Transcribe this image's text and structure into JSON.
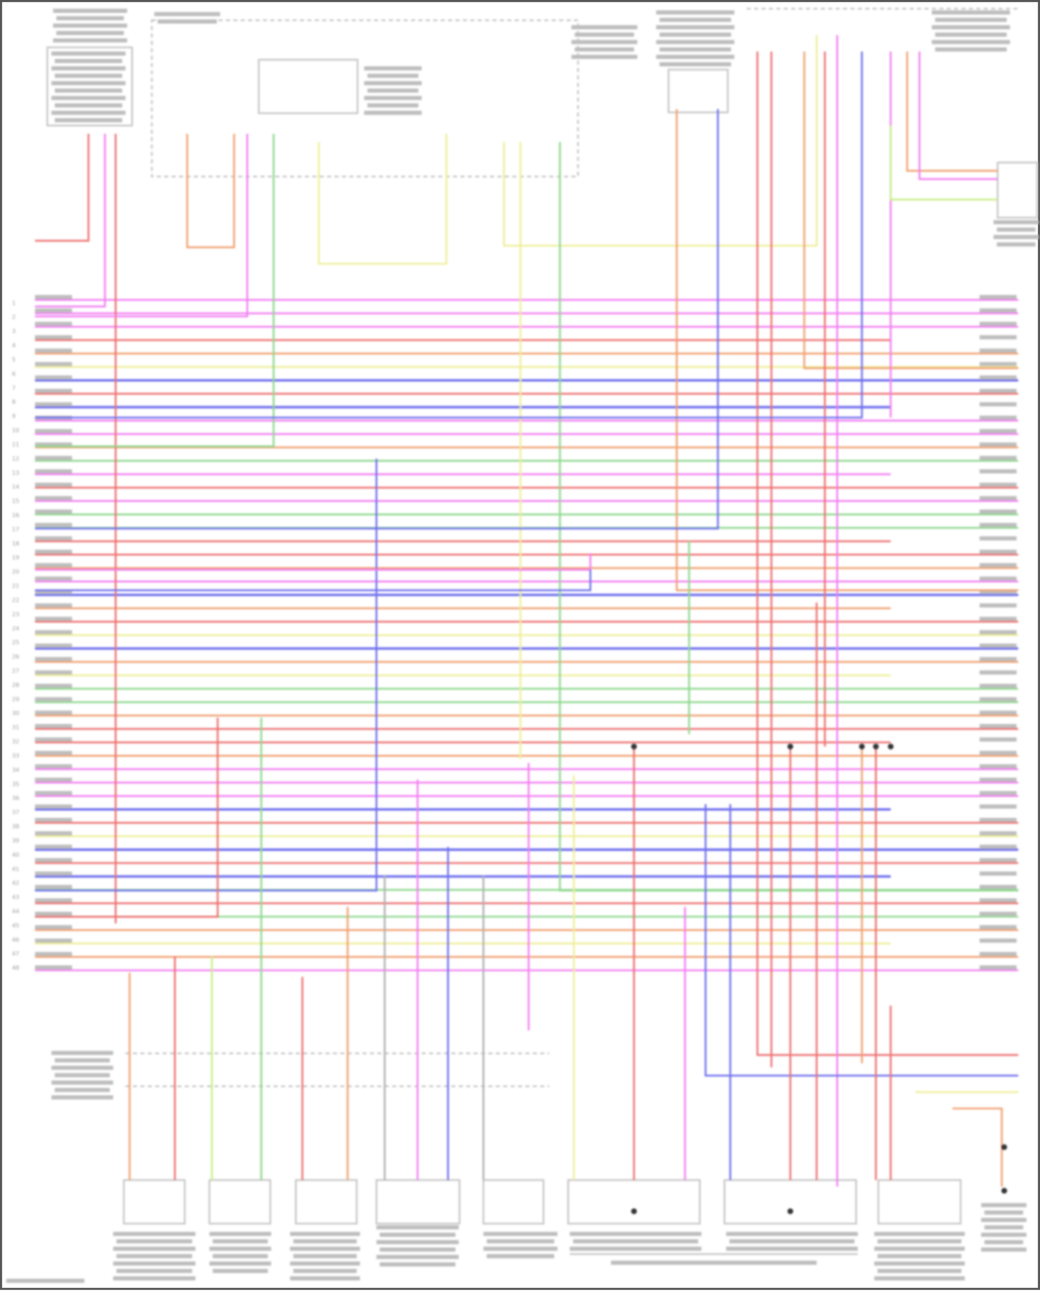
{
  "diagram": {
    "palette": {
      "pink": "#f27ef2",
      "red": "#ee7070",
      "orange": "#f0a070",
      "yellow": "#eeee99",
      "blue": "#7070ee",
      "green": "#8ed88e",
      "lime": "#c8ee88",
      "violet": "#b58ef0",
      "gray": "#b0b0b0"
    },
    "left_pins": [
      "1",
      "2",
      "3",
      "4",
      "5",
      "6",
      "7",
      "8",
      "9",
      "10",
      "11",
      "12",
      "13",
      "14",
      "15",
      "16",
      "17",
      "18",
      "19",
      "20",
      "21",
      "22",
      "23",
      "24",
      "25",
      "26",
      "27",
      "28",
      "29",
      "30",
      "31",
      "32",
      "33",
      "34",
      "35",
      "36",
      "37",
      "38",
      "39",
      "40",
      "41",
      "42",
      "43",
      "44",
      "45",
      "46",
      "47",
      "48"
    ],
    "bus_wire_colors": [
      "pink",
      "pink",
      "pink",
      "red",
      "orange",
      "yellow",
      "blue",
      "red",
      "blue",
      "pink",
      "pink",
      "orange",
      "green",
      "pink",
      "red",
      "pink",
      "green",
      "green",
      "red",
      "red",
      "orange",
      "pink",
      "blue",
      "orange",
      "red",
      "yellow",
      "blue",
      "orange",
      "yellow",
      "green",
      "green",
      "orange",
      "red",
      "red",
      "orange",
      "pink",
      "pink",
      "pink",
      "blue",
      "red",
      "yellow",
      "blue",
      "red",
      "blue",
      "green",
      "red",
      "green",
      "orange",
      "yellow",
      "orange",
      "pink"
    ]
  }
}
